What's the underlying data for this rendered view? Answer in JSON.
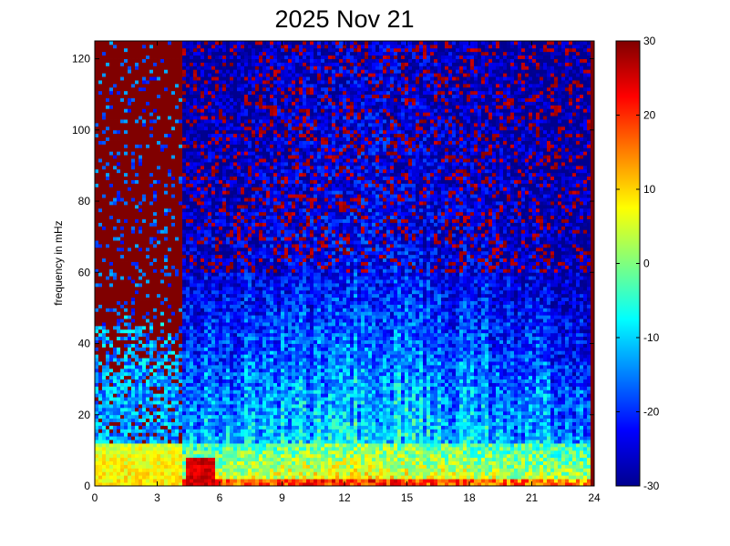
{
  "chart_data": {
    "type": "heatmap",
    "title": "2025 Nov 21",
    "xlabel": "",
    "ylabel": "frequency in mHz",
    "xlim": [
      0,
      24
    ],
    "ylim": [
      0,
      125
    ],
    "xticks": [
      "0",
      "3",
      "6",
      "9",
      "12",
      "15",
      "18",
      "21",
      "24"
    ],
    "yticks": [
      "0",
      "20",
      "40",
      "60",
      "80",
      "100",
      "120"
    ],
    "colorbar": {
      "clim": [
        -30,
        30
      ],
      "ticks": [
        "-30",
        "-20",
        "-10",
        "0",
        "10",
        "20",
        "30"
      ],
      "colormap": "jet"
    },
    "description_bands": [
      {
        "from_hour": 0,
        "to_hour": 4.2,
        "note": "mostly saturated (~30) above ~35 mHz"
      },
      {
        "from_hour": 4.2,
        "to_hour": 23.8,
        "note": "low power above ~70 mHz, moderate 20-60 mHz, high power 0-12 mHz"
      },
      {
        "from_hour": 23.8,
        "to_hour": 24,
        "note": "saturated"
      }
    ],
    "grid": false
  }
}
